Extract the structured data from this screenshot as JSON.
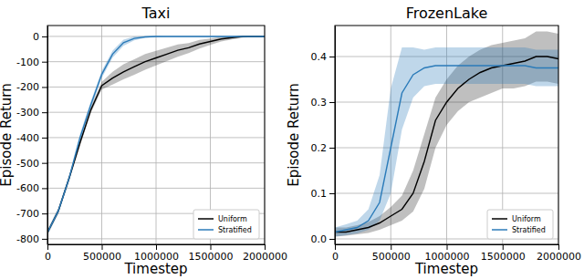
{
  "chart_data": [
    {
      "type": "line",
      "title": "Taxi",
      "x_label": "Timestep",
      "y_label": "Episode Return",
      "x": [
        0,
        100000,
        200000,
        300000,
        400000,
        500000,
        600000,
        700000,
        800000,
        900000,
        1000000,
        1100000,
        1200000,
        1300000,
        1400000,
        1500000,
        1600000,
        1700000,
        1800000,
        1900000,
        2000000
      ],
      "xlim": [
        0,
        2000000
      ],
      "xticks": [
        0,
        500000,
        1000000,
        1500000,
        2000000
      ],
      "ylim": [
        -822,
        43
      ],
      "yticks": [
        -800,
        -700,
        -600,
        -500,
        -400,
        -300,
        -200,
        -100,
        0
      ],
      "grid": true,
      "legend": "lower right",
      "series": [
        {
          "name": "Uniform",
          "color": "#000000",
          "values": [
            -775,
            -690,
            -560,
            -420,
            -290,
            -195,
            -165,
            -140,
            -120,
            -100,
            -85,
            -70,
            -55,
            -45,
            -30,
            -20,
            -10,
            -5,
            0,
            0,
            0
          ],
          "lower": [
            -785,
            -700,
            -570,
            -432,
            -302,
            -210,
            -190,
            -170,
            -152,
            -132,
            -115,
            -98,
            -80,
            -66,
            -48,
            -34,
            -20,
            -12,
            -5,
            -3,
            -2
          ],
          "upper": [
            -765,
            -680,
            -550,
            -408,
            -278,
            -180,
            -140,
            -110,
            -90,
            -70,
            -57,
            -44,
            -32,
            -26,
            -14,
            -8,
            -2,
            0,
            3,
            3,
            2
          ]
        },
        {
          "name": "Stratified",
          "color": "#2b7bb9",
          "values": [
            -775,
            -690,
            -560,
            -400,
            -270,
            -150,
            -70,
            -25,
            -8,
            -2,
            0,
            0,
            0,
            0,
            0,
            0,
            0,
            0,
            0,
            0,
            0
          ],
          "lower": [
            -785,
            -700,
            -572,
            -414,
            -284,
            -164,
            -84,
            -37,
            -16,
            -6,
            -3,
            -2,
            -2,
            -2,
            -2,
            -2,
            -2,
            -2,
            -2,
            -2,
            -2
          ],
          "upper": [
            -765,
            -680,
            -548,
            -386,
            -256,
            -136,
            -56,
            -13,
            0,
            2,
            3,
            2,
            2,
            2,
            2,
            2,
            2,
            2,
            2,
            2,
            2
          ]
        }
      ]
    },
    {
      "type": "line",
      "title": "FrozenLake",
      "x_label": "Timestep",
      "y_label": "Episode Return",
      "x": [
        0,
        100000,
        200000,
        300000,
        400000,
        500000,
        600000,
        700000,
        800000,
        900000,
        1000000,
        1100000,
        1200000,
        1300000,
        1400000,
        1500000,
        1600000,
        1700000,
        1800000,
        1900000,
        2000000
      ],
      "xlim": [
        0,
        2000000
      ],
      "xticks": [
        0,
        500000,
        1000000,
        1500000,
        2000000
      ],
      "ylim": [
        -0.012,
        0.468
      ],
      "yticks": [
        {
          "value": 0,
          "label": "0.0"
        },
        {
          "value": 0.1,
          "label": "0.1"
        },
        {
          "value": 0.2,
          "label": "0.2"
        },
        {
          "value": 0.3,
          "label": "0.3"
        },
        {
          "value": 0.4,
          "label": "0.4"
        }
      ],
      "grid": true,
      "legend": "lower right",
      "series": [
        {
          "name": "Uniform",
          "color": "#000000",
          "values": [
            0.015,
            0.015,
            0.02,
            0.025,
            0.035,
            0.05,
            0.065,
            0.1,
            0.17,
            0.26,
            0.3,
            0.33,
            0.35,
            0.365,
            0.375,
            0.38,
            0.385,
            0.39,
            0.4,
            0.4,
            0.395
          ],
          "lower": [
            0.005,
            0.007,
            0.01,
            0.013,
            0.02,
            0.03,
            0.04,
            0.06,
            0.11,
            0.2,
            0.25,
            0.28,
            0.3,
            0.31,
            0.32,
            0.33,
            0.33,
            0.335,
            0.345,
            0.345,
            0.34
          ],
          "upper": [
            0.025,
            0.025,
            0.03,
            0.037,
            0.05,
            0.07,
            0.095,
            0.15,
            0.23,
            0.31,
            0.35,
            0.38,
            0.4,
            0.415,
            0.425,
            0.43,
            0.435,
            0.44,
            0.455,
            0.455,
            0.45
          ]
        },
        {
          "name": "Stratified",
          "color": "#2b7bb9",
          "values": [
            0.015,
            0.02,
            0.025,
            0.04,
            0.08,
            0.2,
            0.32,
            0.36,
            0.375,
            0.38,
            0.38,
            0.38,
            0.38,
            0.38,
            0.38,
            0.38,
            0.38,
            0.38,
            0.375,
            0.375,
            0.375
          ],
          "lower": [
            0.005,
            0.008,
            0.012,
            0.02,
            0.04,
            0.1,
            0.24,
            0.31,
            0.335,
            0.34,
            0.34,
            0.34,
            0.34,
            0.34,
            0.34,
            0.34,
            0.34,
            0.34,
            0.335,
            0.335,
            0.335
          ],
          "upper": [
            0.025,
            0.032,
            0.04,
            0.065,
            0.14,
            0.33,
            0.42,
            0.42,
            0.415,
            0.42,
            0.42,
            0.42,
            0.42,
            0.42,
            0.42,
            0.42,
            0.42,
            0.42,
            0.415,
            0.415,
            0.415
          ]
        }
      ]
    }
  ]
}
